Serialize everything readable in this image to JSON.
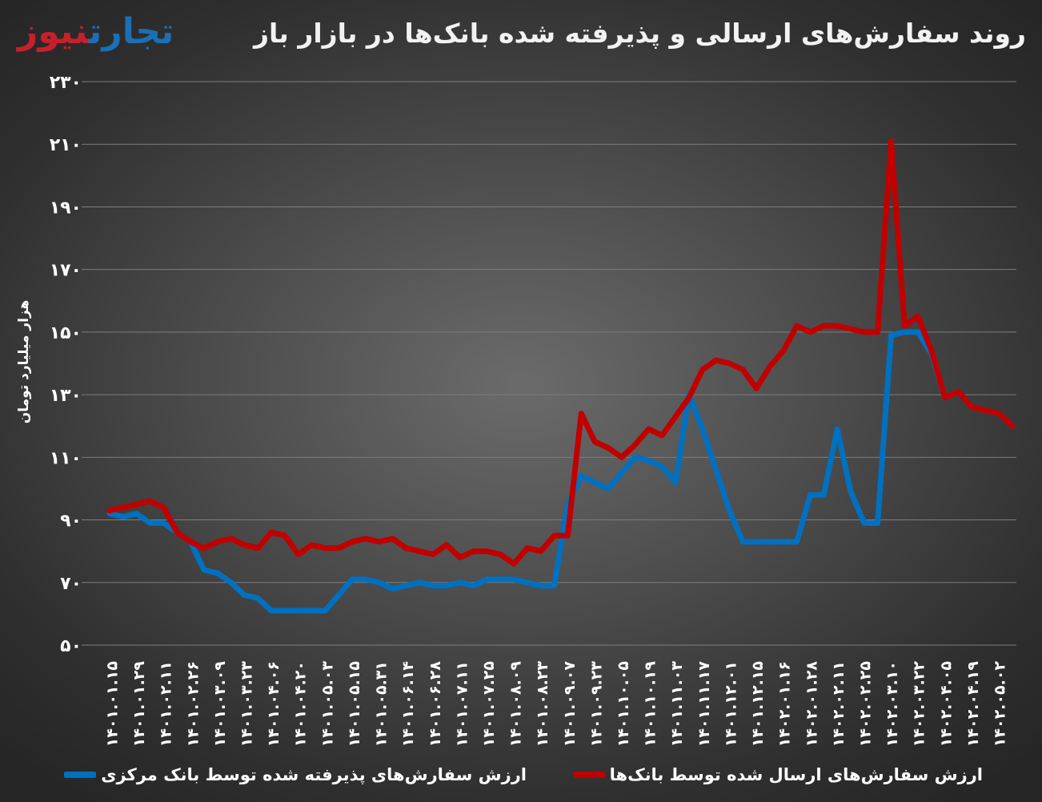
{
  "header": {
    "title": "روند سفارش‌های ارسالی و پذیرفته شده بانک‌ها در بازار باز",
    "logo_part1": "تجارت",
    "logo_part2": "نیوز"
  },
  "colors": {
    "sent_series": "#c00000",
    "accepted_series": "#0070c0",
    "logo_blue": "#1b6fb5",
    "logo_red": "#c8202a"
  },
  "chart_data": {
    "type": "line",
    "title": "روند سفارش‌های ارسالی و پذیرفته شده بانک‌ها در بازار باز",
    "ylabel": "هزار میلیارد تومان",
    "xlabel": "",
    "ylim": [
      50,
      230
    ],
    "yticks": [
      "۵۰",
      "۷۰",
      "۹۰",
      "۱۱۰",
      "۱۳۰",
      "۱۵۰",
      "۱۷۰",
      "۱۹۰",
      "۲۱۰",
      "۲۳۰"
    ],
    "grid": true,
    "legend_position": "bottom",
    "x_tick_labels": [
      "۱۴۰۱.۰۱.۱۵",
      "۱۴۰۱.۰۱.۲۹",
      "۱۴۰۱.۰۲.۱۱",
      "۱۴۰۱.۰۲.۲۶",
      "۱۴۰۱.۰۳.۰۹",
      "۱۴۰۱.۰۳.۲۳",
      "۱۴۰۱.۰۴.۰۶",
      "۱۴۰۱.۰۴.۲۰",
      "۱۴۰۱.۰۵.۰۳",
      "۱۴۰۱.۰۵.۱۵",
      "۱۴۰۱.۰۵.۳۱",
      "۱۴۰۱.۰۶.۱۴",
      "۱۴۰۱.۰۶.۲۸",
      "۱۴۰۱.۰۷.۱۱",
      "۱۴۰۱.۰۷.۲۵",
      "۱۴۰۱.۰۸.۰۹",
      "۱۴۰۱.۰۸.۲۳",
      "۱۴۰۱.۰۹.۰۷",
      "۱۴۰۱.۰۹.۲۳",
      "۱۴۰۱.۱۰.۰۵",
      "۱۴۰۱.۱۰.۱۹",
      "۱۴۰۱.۱۱.۰۳",
      "۱۴۰۱.۱۱.۱۷",
      "۱۴۰۱.۱۲.۰۱",
      "۱۴۰۱.۱۲.۱۵",
      "۱۴۰۲.۰۱.۱۶",
      "۱۴۰۲.۰۱.۲۸",
      "۱۴۰۲.۰۲.۱۱",
      "۱۴۰۲.۰۲.۲۵",
      "۱۴۰۲.۰۳.۱۰",
      "۱۴۰۲.۰۳.۲۲",
      "۱۴۰۲.۰۴.۰۵",
      "۱۴۰۲.۰۴.۱۹",
      "۱۴۰۲.۰۵.۰۲"
    ],
    "series": [
      {
        "name": "ارزش سفارش‌های ارسال شده توسط بانک‌ها",
        "color": "#c00000",
        "values": [
          93,
          94,
          95,
          96,
          94,
          86,
          83,
          81,
          83,
          84,
          82,
          81,
          86,
          85,
          79,
          82,
          81,
          81,
          83,
          84,
          83,
          84,
          81,
          80,
          79,
          82,
          78,
          80,
          80,
          79,
          76,
          81,
          80,
          85,
          85,
          124,
          115,
          113,
          110,
          114,
          119,
          117,
          123,
          129,
          138,
          141,
          140,
          138,
          132,
          139,
          144,
          152,
          150,
          152,
          152,
          151,
          150,
          150,
          211,
          152,
          155,
          144,
          129,
          131,
          126,
          125,
          124,
          120
        ]
      },
      {
        "name": "ارزش سفارش‌های پذیرفته شده توسط بانک مرکزی",
        "color": "#0070c0",
        "values": [
          92,
          91,
          92,
          89,
          89,
          86,
          83,
          74,
          73,
          70,
          66,
          65,
          61,
          61,
          61,
          61,
          61,
          66,
          71,
          71,
          70,
          68,
          69,
          70,
          69,
          69,
          70,
          69,
          71,
          71,
          71,
          70,
          69,
          69,
          95,
          104,
          102,
          100,
          105,
          110,
          109,
          107,
          102,
          130,
          119,
          106,
          93,
          83,
          83,
          83,
          83,
          83,
          98,
          98,
          119,
          99,
          89,
          89,
          149,
          150,
          150,
          143,
          129,
          131,
          126,
          125,
          124,
          120
        ]
      }
    ]
  }
}
